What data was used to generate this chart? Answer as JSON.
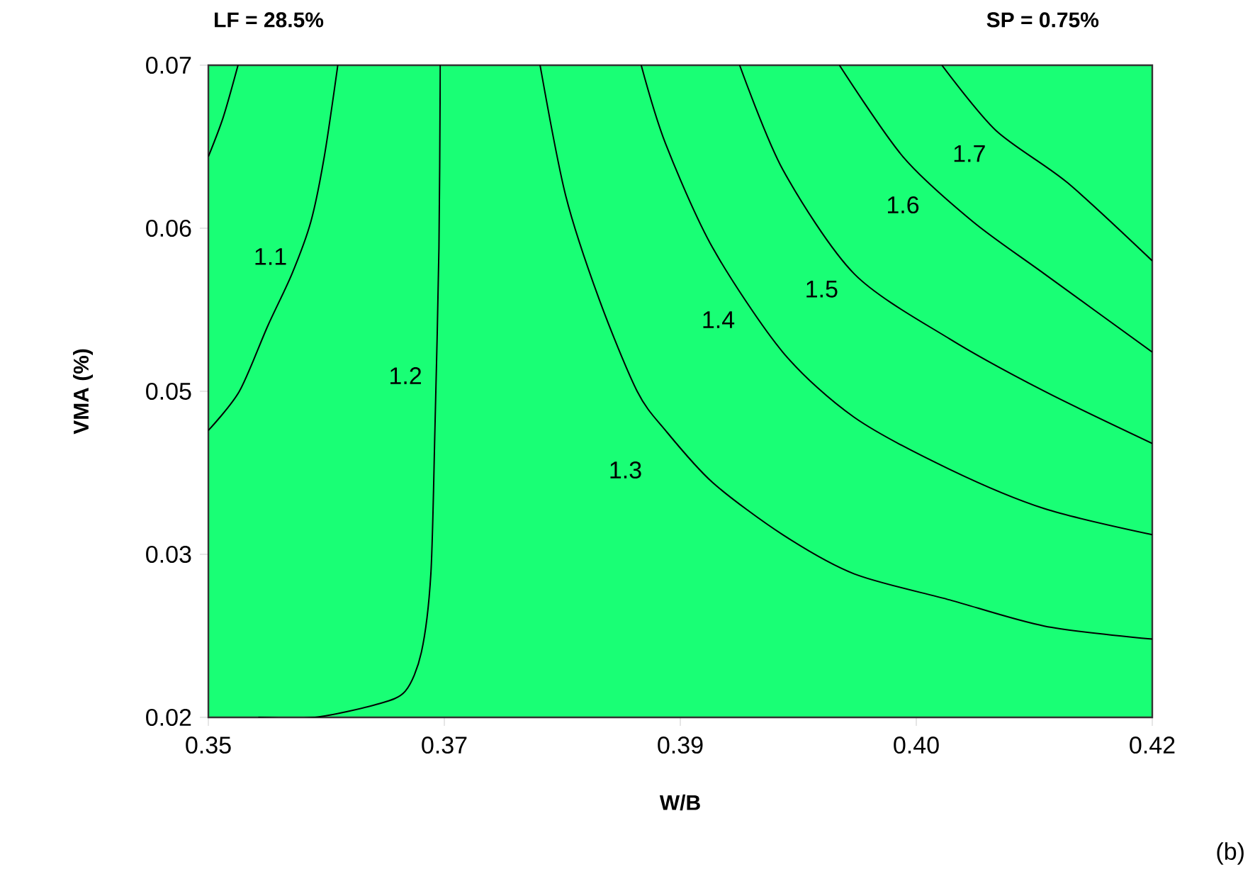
{
  "chart_data": {
    "type": "line",
    "xlabel": "W/B",
    "ylabel": "VMA (%)",
    "annotations": [
      "LF = 28.5%",
      "SP = 0.75%",
      "(b)"
    ],
    "xlim": [
      0.35,
      0.42
    ],
    "ylim": [
      0.02,
      0.07
    ],
    "xticks": [
      0.35,
      {
        "value": 0.3675,
        "label": "0.37"
      },
      {
        "value": 0.385,
        "label": "0.39"
      },
      {
        "value": 0.4025,
        "label": "0.40"
      },
      0.42
    ],
    "yticks": [
      0.02,
      {
        "value": 0.0325,
        "label": "0.03"
      },
      {
        "value": 0.045,
        "label": "0.05"
      },
      {
        "value": 0.0575,
        "label": "0.06"
      },
      0.07
    ],
    "series": [
      {
        "color": "#000000",
        "x": [
          0.35,
          0.3511,
          0.3522
        ],
        "values": [
          0.063,
          0.066,
          0.07
        ]
      },
      {
        "name": "1.1",
        "color": "#000000",
        "x": [
          0.35,
          0.3523,
          0.3544,
          0.3562,
          0.3576,
          0.3586,
          0.3596
        ],
        "values": [
          0.042,
          0.045,
          0.05,
          0.054,
          0.058,
          0.063,
          0.07
        ]
      },
      {
        "name": "1.2",
        "color": "#000000",
        "x": [
          0.3537,
          0.3579,
          0.3625,
          0.3646,
          0.3658,
          0.3665,
          0.3668,
          0.3671,
          0.3672
        ],
        "values": [
          0.02,
          0.02,
          0.021,
          0.022,
          0.025,
          0.031,
          0.042,
          0.056,
          0.07
        ]
      },
      {
        "name": "1.3",
        "color": "#000000",
        "x": [
          0.3746,
          0.3765,
          0.379,
          0.3818,
          0.3839,
          0.3874,
          0.3926,
          0.3979,
          0.405,
          0.412,
          0.42
        ],
        "values": [
          0.07,
          0.06,
          0.052,
          0.045,
          0.042,
          0.038,
          0.034,
          0.031,
          0.029,
          0.027,
          0.026
        ]
      },
      {
        "name": "1.4",
        "color": "#000000",
        "x": [
          0.3821,
          0.3839,
          0.3874,
          0.3926,
          0.3979,
          0.405,
          0.412,
          0.42
        ],
        "values": [
          0.07,
          0.064,
          0.056,
          0.048,
          0.043,
          0.039,
          0.036,
          0.034
        ]
      },
      {
        "name": "1.5",
        "color": "#000000",
        "x": [
          0.3894,
          0.3926,
          0.3979,
          0.405,
          0.412,
          0.42
        ],
        "values": [
          0.07,
          0.062,
          0.054,
          0.049,
          0.045,
          0.041
        ]
      },
      {
        "name": "1.6",
        "color": "#000000",
        "x": [
          0.3968,
          0.4015,
          0.4067,
          0.412,
          0.42
        ],
        "values": [
          0.07,
          0.063,
          0.058,
          0.054,
          0.048
        ]
      },
      {
        "name": "1.7",
        "color": "#000000",
        "x": [
          0.4044,
          0.4084,
          0.4137,
          0.42
        ],
        "values": [
          0.07,
          0.065,
          0.061,
          0.055
        ]
      }
    ]
  }
}
